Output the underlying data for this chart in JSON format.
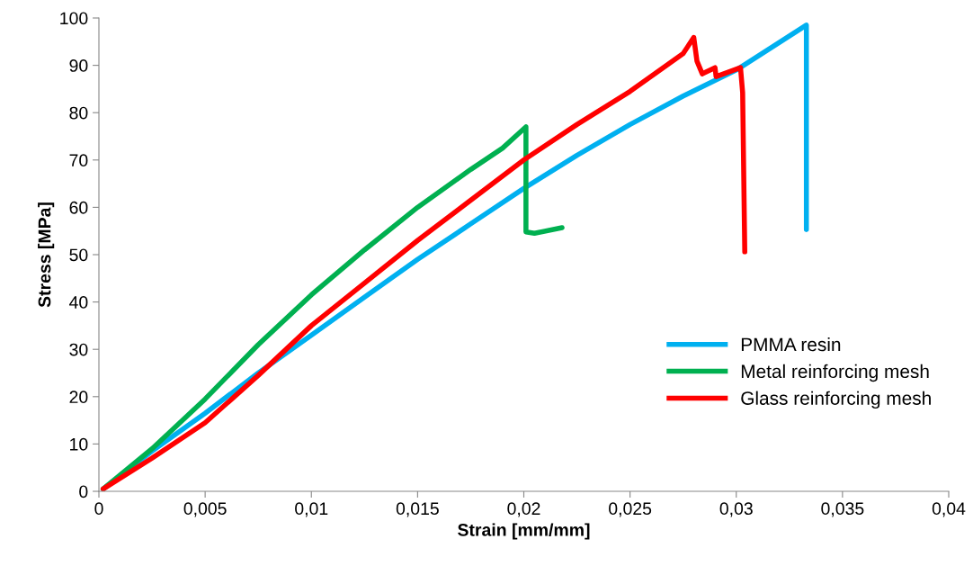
{
  "chart_data": {
    "type": "line",
    "xlabel": "Strain [mm/mm]",
    "ylabel": "Stress [MPa]",
    "xlim": [
      0,
      0.04
    ],
    "ylim": [
      0,
      100
    ],
    "xticks": [
      0,
      {
        "value": 0.005,
        "label": "0,005"
      },
      {
        "value": 0.01,
        "label": "0,01"
      },
      {
        "value": 0.015,
        "label": "0,015"
      },
      {
        "value": 0.02,
        "label": "0,02"
      },
      {
        "value": 0.025,
        "label": "0,025"
      },
      {
        "value": 0.03,
        "label": "0,03"
      },
      {
        "value": 0.035,
        "label": "0,035"
      },
      {
        "value": 0.04,
        "label": "0,04"
      }
    ],
    "yticks": [
      0,
      10,
      20,
      30,
      40,
      50,
      60,
      70,
      80,
      90,
      100
    ],
    "grid": false,
    "legend": "right",
    "marker": "none",
    "line_style": "solid",
    "series": [
      {
        "name": "PMMA resin",
        "color": "#00b0f0",
        "x": [
          0.0002,
          0.0025,
          0.005,
          0.0075,
          0.01,
          0.0125,
          0.015,
          0.0175,
          0.02,
          0.0225,
          0.025,
          0.0275,
          0.03,
          0.0333,
          0.0333
        ],
        "values": [
          0.5,
          8.5,
          16.5,
          25,
          33,
          41,
          49,
          56.5,
          64,
          71,
          77.5,
          83.5,
          89,
          98.5,
          55.3
        ]
      },
      {
        "name": "Metal reinforcing mesh",
        "color": "#00b050",
        "x": [
          0.0002,
          0.0025,
          0.005,
          0.0075,
          0.01,
          0.0125,
          0.015,
          0.0175,
          0.019,
          0.0201,
          0.0201,
          0.0205,
          0.0218
        ],
        "values": [
          0.5,
          9,
          19.5,
          31,
          41.5,
          51,
          60,
          68,
          72.5,
          77,
          54.8,
          54.5,
          55.7
        ]
      },
      {
        "name": "Glass reinforcing mesh",
        "color": "#ff0000",
        "x": [
          0.0002,
          0.0025,
          0.005,
          0.0075,
          0.01,
          0.0125,
          0.015,
          0.0175,
          0.02,
          0.0225,
          0.025,
          0.0275,
          0.028,
          0.02815,
          0.0284,
          0.029,
          0.02905,
          0.0302,
          0.0303,
          0.0304
        ],
        "values": [
          0.5,
          7,
          14.5,
          24.5,
          35,
          44,
          53,
          61.5,
          70,
          77.5,
          84.5,
          92.5,
          95.9,
          90.9,
          88.2,
          89.5,
          87.6,
          89.5,
          84.2,
          50.6
        ]
      }
    ]
  }
}
